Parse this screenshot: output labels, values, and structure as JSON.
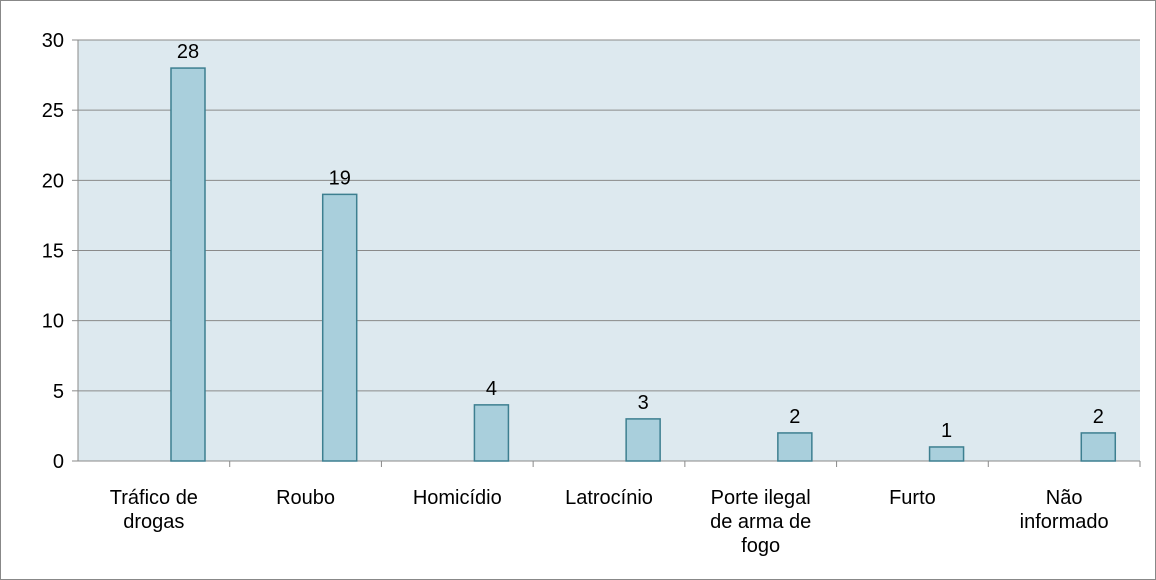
{
  "chart_data": {
    "type": "bar",
    "categories": [
      "Tráfico de drogas",
      "Roubo",
      "Homicídio",
      "Latrocínio",
      "Porte ilegal de arma de fogo",
      "Furto",
      "Não informado"
    ],
    "values": [
      28,
      19,
      4,
      3,
      2,
      1,
      2
    ],
    "color": "#a9cfdc",
    "edge_color": "#3d7f90",
    "plot_background": "#dde9ef",
    "ylim": [
      0,
      30
    ],
    "yticks": [
      0,
      5,
      10,
      15,
      20,
      25,
      30
    ],
    "grid": true
  }
}
